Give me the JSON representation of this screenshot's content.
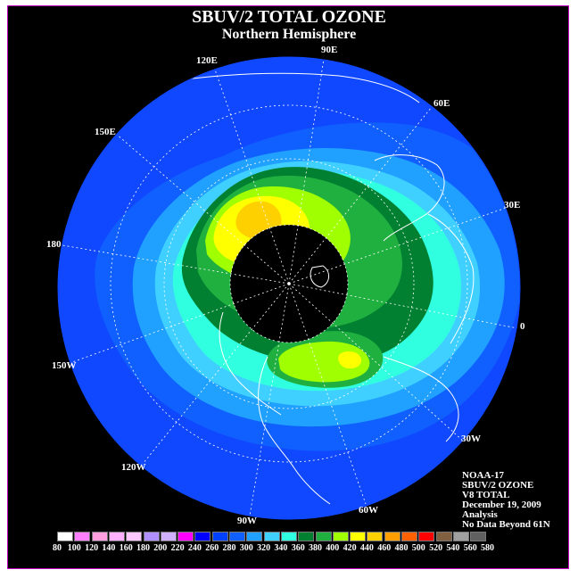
{
  "title": "SBUV/2 TOTAL OZONE",
  "subtitle": "Northern Hemisphere",
  "longitude_labels": [
    "90E",
    "60E",
    "30E",
    "0",
    "30W",
    "60W",
    "90W",
    "120W",
    "150W",
    "180",
    "150E",
    "120E"
  ],
  "info": {
    "line1": "NOAA-17",
    "line2": "SBUV/2 OZONE",
    "line3": "V8 TOTAL",
    "line4": "December 19, 2009",
    "line5": "Analysis",
    "line6": "No Data Beyond 61N"
  },
  "legend": {
    "ticks": [
      "80",
      "100",
      "120",
      "140",
      "160",
      "180",
      "200",
      "220",
      "240",
      "260",
      "280",
      "300",
      "320",
      "340",
      "360",
      "380",
      "400",
      "420",
      "440",
      "460",
      "480",
      "500",
      "520",
      "540",
      "560",
      "580"
    ],
    "colors": [
      "#ffffff",
      "#ff80ff",
      "#ff9fe0",
      "#ffb0ff",
      "#ffc8ff",
      "#b090ff",
      "#d0b0ff",
      "#ff00ff",
      "#0000ff",
      "#0040ff",
      "#1060ff",
      "#20a0ff",
      "#40d0ff",
      "#30ffe0",
      "#008030",
      "#20b040",
      "#a0ff00",
      "#ffff00",
      "#ffd000",
      "#ffa000",
      "#ff6000",
      "#ff0000",
      "#806040",
      "#a0a0a0",
      "#606060"
    ]
  },
  "colors": {
    "background": "#000000",
    "disk_base": "#1048ff",
    "no_data": "#000000",
    "coastline": "#ffffff",
    "border": "#c000c0"
  }
}
